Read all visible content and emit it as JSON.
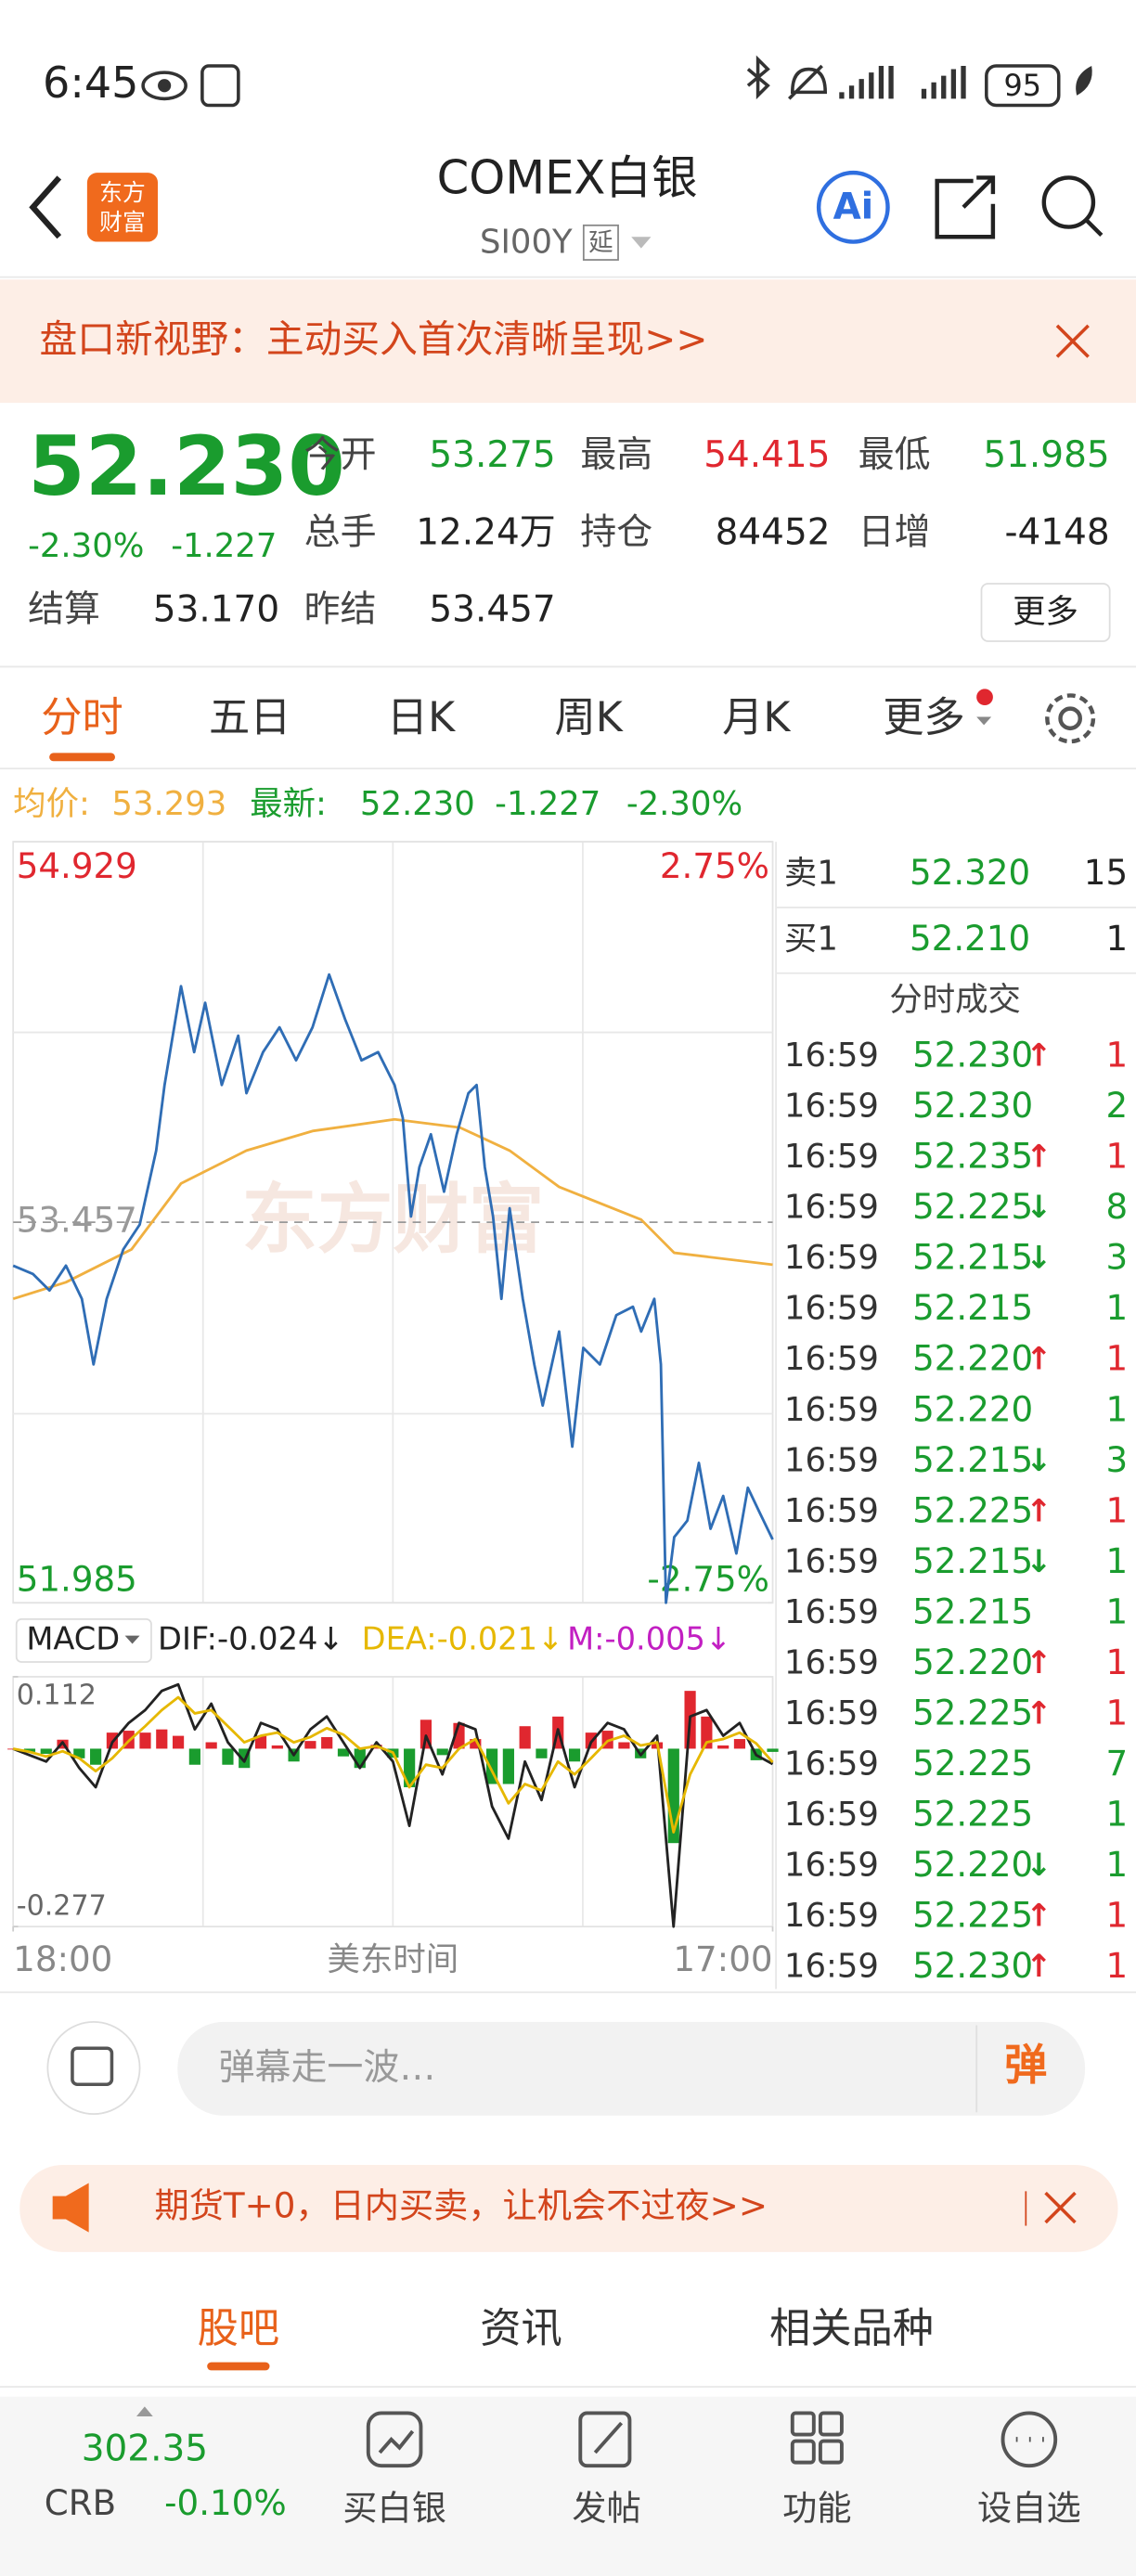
{
  "status_bar": {
    "time": "6:45",
    "battery": "95"
  },
  "header": {
    "logo_lines": [
      "东方",
      "财富"
    ],
    "title": "COMEX白银",
    "code": "SI00Y",
    "delay_tag": "延",
    "ai": "Ai"
  },
  "banner": {
    "text": "盘口新视野：主动买入首次清晰呈现>>"
  },
  "quote": {
    "price": "52.230",
    "change_pct": "-2.30%",
    "change": "-1.227",
    "color": "#1a9c2e",
    "fields": [
      {
        "label": "今开",
        "value": "53.275",
        "color": "#1a9c2e"
      },
      {
        "label": "最高",
        "value": "54.415",
        "color": "#e0272f"
      },
      {
        "label": "最低",
        "value": "51.985",
        "color": "#1a9c2e"
      },
      {
        "label": "总手",
        "value": "12.24万"
      },
      {
        "label": "持仓",
        "value": "84452"
      },
      {
        "label": "日增",
        "value": "-4148"
      },
      {
        "label": "结算",
        "value": "53.170"
      },
      {
        "label": "昨结",
        "value": "53.457"
      }
    ],
    "more": "更多"
  },
  "chart_tabs": {
    "items": [
      "分时",
      "五日",
      "日K",
      "周K",
      "月K",
      "更多"
    ],
    "active_index": 0
  },
  "chart_data": [
    {
      "type": "line",
      "watermark": "东方财富",
      "info": {
        "avg": "53.293",
        "last": "52.230",
        "change": "-1.227",
        "change_pct": "-2.30%"
      },
      "xlim": [
        0,
        1380
      ],
      "ylim": [
        51.985,
        54.929
      ],
      "yticks": [
        51.985,
        53.457,
        54.929
      ],
      "y2lim": [
        -2.75,
        2.75
      ],
      "y2ticks": [
        {
          "value": -2.75,
          "label": "-2.75%"
        },
        {
          "value": 2.75,
          "label": "2.75%"
        }
      ],
      "up_color": "#e0272f",
      "down_color": "#1a9c2e",
      "x": [
        0,
        36,
        66,
        96,
        125,
        146,
        170,
        200,
        230,
        260,
        275,
        305,
        329,
        349,
        379,
        409,
        424,
        454,
        484,
        514,
        544,
        574,
        603,
        633,
        663,
        693,
        708,
        723,
        738,
        759,
        783,
        806,
        827,
        842,
        857,
        872,
        887,
        902,
        926,
        947,
        962,
        992,
        1016,
        1036,
        1066,
        1096,
        1126,
        1141,
        1165,
        1177,
        1186,
        1201,
        1225,
        1246,
        1267,
        1290,
        1314,
        1335,
        1356,
        1380
      ],
      "series": [
        {
          "name": "最新:",
          "color": "#2f6db5",
          "legend_color": "#1a9c2e",
          "values": [
            53.289,
            53.257,
            53.193,
            53.289,
            53.161,
            52.907,
            53.161,
            53.352,
            53.448,
            53.734,
            53.988,
            54.37,
            54.115,
            54.306,
            53.988,
            54.179,
            53.956,
            54.115,
            54.211,
            54.083,
            54.211,
            54.415,
            54.242,
            54.083,
            54.115,
            53.988,
            53.861,
            53.479,
            53.67,
            53.797,
            53.575,
            53.797,
            53.956,
            53.988,
            53.67,
            53.479,
            53.161,
            53.511,
            53.161,
            52.907,
            52.748,
            53.034,
            52.589,
            52.971,
            52.907,
            53.098,
            53.13,
            53.034,
            53.161,
            52.907,
            51.985,
            52.239,
            52.303,
            52.526,
            52.271,
            52.398,
            52.176,
            52.43,
            52.335,
            52.23
          ]
        },
        {
          "name": "均价:",
          "color": "#f0b040",
          "x": [
            0,
            96,
            215,
            305,
            424,
            544,
            693,
            812,
            902,
            992,
            1141,
            1201,
            1380
          ],
          "values": [
            53.161,
            53.225,
            53.352,
            53.607,
            53.734,
            53.81,
            53.855,
            53.823,
            53.734,
            53.594,
            53.467,
            53.339,
            53.293
          ]
        }
      ]
    },
    {
      "type": "macd",
      "title": "MACD",
      "xlim": [
        0,
        1380
      ],
      "xticks": [
        {
          "value": 0,
          "label": "18:00"
        },
        {
          "value": 1380,
          "label": "17:00"
        }
      ],
      "x_label": "美东时间",
      "ylim": [
        -0.277,
        0.112
      ],
      "yticks": [
        -0.277,
        0.112
      ],
      "x": [
        0,
        30,
        60,
        90,
        120,
        150,
        180,
        210,
        240,
        270,
        300,
        330,
        360,
        390,
        420,
        450,
        480,
        510,
        540,
        570,
        600,
        630,
        660,
        690,
        720,
        750,
        780,
        810,
        840,
        870,
        900,
        930,
        960,
        990,
        1020,
        1050,
        1080,
        1110,
        1140,
        1170,
        1200,
        1230,
        1260,
        1290,
        1320,
        1350,
        1380
      ],
      "series": [
        {
          "name": "M:-0.005↓",
          "type": "bar",
          "color": "#e0272f",
          "negative_color": "#1a9c2e",
          "legend_color": "#c21fc2",
          "values": [
            0.0,
            -0.005,
            -0.008,
            0.014,
            -0.015,
            -0.025,
            0.025,
            0.028,
            0.025,
            0.03,
            0.02,
            -0.025,
            0.01,
            -0.025,
            -0.03,
            0.02,
            0.005,
            -0.02,
            0.012,
            0.018,
            -0.012,
            -0.03,
            0.006,
            -0.014,
            -0.06,
            0.045,
            -0.01,
            0.04,
            0.015,
            -0.055,
            -0.055,
            0.035,
            -0.015,
            0.05,
            -0.02,
            0.025,
            0.028,
            0.01,
            -0.015,
            0.01,
            -0.147,
            0.09,
            0.05,
            0.005,
            0.015,
            -0.018,
            -0.005
          ]
        },
        {
          "name": "DIF:-0.024↓",
          "type": "line",
          "color": "#222222",
          "values": [
            0.0,
            -0.01,
            -0.02,
            0.01,
            -0.03,
            -0.06,
            0.01,
            0.04,
            0.06,
            0.09,
            0.1,
            0.03,
            0.07,
            0.01,
            -0.02,
            0.04,
            0.03,
            -0.01,
            0.03,
            0.05,
            0.01,
            -0.03,
            0.01,
            -0.02,
            -0.12,
            0.02,
            -0.04,
            0.04,
            0.03,
            -0.09,
            -0.14,
            -0.02,
            -0.08,
            0.03,
            -0.06,
            0.01,
            0.04,
            0.03,
            -0.01,
            0.02,
            -0.277,
            0.05,
            0.06,
            0.02,
            0.04,
            -0.01,
            -0.024
          ]
        },
        {
          "name": "DEA:-0.021↓",
          "type": "line",
          "color": "#e6b800",
          "values": [
            0.0,
            -0.005,
            -0.012,
            -0.004,
            -0.015,
            -0.035,
            -0.015,
            0.012,
            0.035,
            0.06,
            0.08,
            0.055,
            0.06,
            0.035,
            0.01,
            0.02,
            0.025,
            0.01,
            0.018,
            0.032,
            0.022,
            0.0,
            0.004,
            -0.006,
            -0.06,
            -0.025,
            -0.03,
            0.0,
            0.015,
            -0.035,
            -0.085,
            -0.055,
            -0.065,
            -0.02,
            -0.04,
            -0.015,
            0.012,
            0.02,
            0.005,
            0.01,
            -0.13,
            -0.04,
            0.01,
            0.015,
            0.025,
            0.008,
            -0.021
          ]
        }
      ]
    }
  ],
  "order_book": [
    {
      "label": "卖1",
      "price": "52.320",
      "volume": "15"
    },
    {
      "label": "买1",
      "price": "52.210",
      "volume": "1"
    }
  ],
  "trades": {
    "title": "分时成交",
    "up_color": "#e0272f",
    "down_color": "#1a9c2e",
    "rows": [
      {
        "time": "16:59",
        "price": "52.230",
        "arrow": "↑",
        "volume": "1"
      },
      {
        "time": "16:59",
        "price": "52.230",
        "volume": "2"
      },
      {
        "time": "16:59",
        "price": "52.235",
        "arrow": "↑",
        "volume": "1"
      },
      {
        "time": "16:59",
        "price": "52.225",
        "arrow": "↓",
        "volume": "8"
      },
      {
        "time": "16:59",
        "price": "52.215",
        "arrow": "↓",
        "volume": "3"
      },
      {
        "time": "16:59",
        "price": "52.215",
        "volume": "1"
      },
      {
        "time": "16:59",
        "price": "52.220",
        "arrow": "↑",
        "volume": "1"
      },
      {
        "time": "16:59",
        "price": "52.220",
        "volume": "1"
      },
      {
        "time": "16:59",
        "price": "52.215",
        "arrow": "↓",
        "volume": "3"
      },
      {
        "time": "16:59",
        "price": "52.225",
        "arrow": "↑",
        "volume": "1"
      },
      {
        "time": "16:59",
        "price": "52.215",
        "arrow": "↓",
        "volume": "1"
      },
      {
        "time": "16:59",
        "price": "52.215",
        "volume": "1"
      },
      {
        "time": "16:59",
        "price": "52.220",
        "arrow": "↑",
        "volume": "1"
      },
      {
        "time": "16:59",
        "price": "52.225",
        "arrow": "↑",
        "volume": "1"
      },
      {
        "time": "16:59",
        "price": "52.225",
        "volume": "7"
      },
      {
        "time": "16:59",
        "price": "52.225",
        "volume": "1"
      },
      {
        "time": "16:59",
        "price": "52.220",
        "arrow": "↓",
        "volume": "1"
      },
      {
        "time": "16:59",
        "price": "52.225",
        "arrow": "↑",
        "volume": "1"
      },
      {
        "time": "16:59",
        "price": "52.230",
        "arrow": "↑",
        "volume": "1"
      }
    ]
  },
  "comment_bar": {
    "placeholder": "弹幕走一波…",
    "button": "弹"
  },
  "promo": {
    "text": "期货T+0，日内买卖，让机会不过夜>>"
  },
  "section_tabs": {
    "items": [
      "股吧",
      "资讯",
      "相关品种"
    ],
    "active_index": 0
  },
  "bottom_nav": {
    "index": {
      "value": "302.35",
      "name": "CRB",
      "change": "-0.10%"
    },
    "items": [
      "买白银",
      "发帖",
      "功能",
      "设自选"
    ]
  }
}
